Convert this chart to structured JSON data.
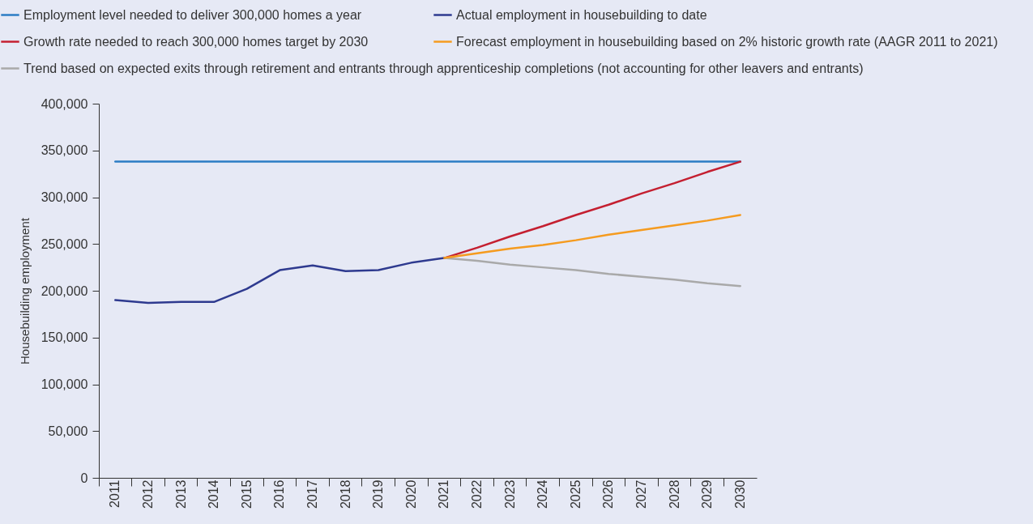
{
  "chart_data": {
    "type": "line",
    "ylabel": "Housebuilding employment",
    "categories": [
      "2011",
      "2012",
      "2013",
      "2014",
      "2015",
      "2016",
      "2017",
      "2018",
      "2019",
      "2020",
      "2021",
      "2022",
      "2023",
      "2024",
      "2025",
      "2026",
      "2027",
      "2028",
      "2029",
      "2030"
    ],
    "series": [
      {
        "name": "Employment level needed to deliver 300,000 homes a year",
        "color": "#2b7cc4",
        "values": [
          338000,
          338000,
          338000,
          338000,
          338000,
          338000,
          338000,
          338000,
          338000,
          338000,
          338000,
          338000,
          338000,
          338000,
          338000,
          338000,
          338000,
          338000,
          338000,
          338000
        ]
      },
      {
        "name": "Actual employment in housebuilding to date",
        "color": "#2e3a8f",
        "values": [
          190000,
          187000,
          188000,
          188000,
          202000,
          222000,
          227000,
          221000,
          222000,
          230000,
          235000,
          null,
          null,
          null,
          null,
          null,
          null,
          null,
          null,
          null
        ]
      },
      {
        "name": "Growth rate needed to reach 300,000 homes target by 2030",
        "color": "#c41f30",
        "values": [
          null,
          null,
          null,
          null,
          null,
          null,
          null,
          null,
          null,
          null,
          235000,
          246000,
          258000,
          269000,
          281000,
          292000,
          304000,
          315000,
          327000,
          338000
        ]
      },
      {
        "name": "Forecast employment in housebuilding based on 2% historic growth rate (AAGR 2011 to 2021)",
        "color": "#f59b1f",
        "values": [
          null,
          null,
          null,
          null,
          null,
          null,
          null,
          null,
          null,
          null,
          235000,
          240000,
          245000,
          249000,
          254000,
          260000,
          265000,
          270000,
          275000,
          281000
        ]
      },
      {
        "name": "Trend based on expected exits through retirement and entrants through apprenticeship completions (not accounting for other leavers and entrants)",
        "color": "#a9a9a9",
        "values": [
          null,
          null,
          null,
          null,
          null,
          null,
          null,
          null,
          null,
          null,
          235000,
          232000,
          228000,
          225000,
          222000,
          218000,
          215000,
          212000,
          208000,
          205000
        ]
      }
    ],
    "ylim": [
      0,
      400000
    ],
    "yticks": [
      0,
      {
        "value": 50000,
        "label": "50,000"
      },
      {
        "value": 100000,
        "label": "100,000"
      },
      {
        "value": 150000,
        "label": "150,000"
      },
      {
        "value": 200000,
        "label": "200,000"
      },
      {
        "value": 250000,
        "label": "250,000"
      },
      {
        "value": 300000,
        "label": "300,000"
      },
      {
        "value": 350000,
        "label": "350,000"
      },
      {
        "value": 400000,
        "label": "400,000"
      }
    ],
    "legend": "top",
    "marker": "none",
    "line_style": "solid"
  }
}
